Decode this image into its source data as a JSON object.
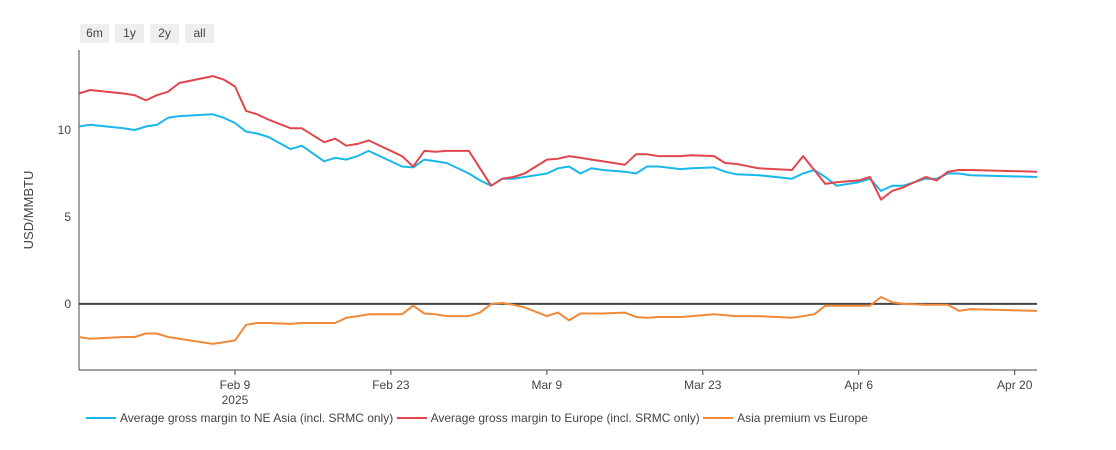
{
  "range_buttons": [
    "6m",
    "1y",
    "2y",
    "all"
  ],
  "colors": {
    "ne_asia": "#1ab7ea",
    "europe": "#e0474c",
    "premium": "#ee8a3a",
    "zero_line": "#444444",
    "axis": "#444444"
  },
  "chart_data": {
    "type": "line",
    "ylabel": "USD/MMBTU",
    "xlabel": "",
    "ylim": [
      -3.8,
      14.6
    ],
    "xlim": [
      "2025-01-26",
      "2025-04-22"
    ],
    "y_ticks": [
      0,
      5,
      10
    ],
    "y_tick_labels": [
      "0",
      "5",
      "10"
    ],
    "x_ticks": [
      "2025-02-09",
      "2025-02-23",
      "2025-03-09",
      "2025-03-23",
      "2025-04-06",
      "2025-04-20"
    ],
    "x_tick_labels": [
      "Feb 9",
      "Feb 23",
      "Mar 9",
      "Mar 23",
      "Apr 6",
      "Apr 20"
    ],
    "x_year_label": "2025",
    "zero_line": true,
    "legend_position": "bottom",
    "x": [
      "2025-01-26",
      "2025-01-27",
      "2025-01-30",
      "2025-01-31",
      "2025-02-01",
      "2025-02-02",
      "2025-02-03",
      "2025-02-04",
      "2025-02-07",
      "2025-02-08",
      "2025-02-09",
      "2025-02-10",
      "2025-02-11",
      "2025-02-12",
      "2025-02-14",
      "2025-02-15",
      "2025-02-17",
      "2025-02-18",
      "2025-02-19",
      "2025-02-20",
      "2025-02-21",
      "2025-02-24",
      "2025-02-25",
      "2025-02-26",
      "2025-02-27",
      "2025-02-28",
      "2025-03-02",
      "2025-03-03",
      "2025-03-04",
      "2025-03-05",
      "2025-03-06",
      "2025-03-07",
      "2025-03-09",
      "2025-03-10",
      "2025-03-11",
      "2025-03-12",
      "2025-03-13",
      "2025-03-14",
      "2025-03-16",
      "2025-03-17",
      "2025-03-18",
      "2025-03-19",
      "2025-03-21",
      "2025-03-22",
      "2025-03-24",
      "2025-03-25",
      "2025-03-26",
      "2025-03-28",
      "2025-03-31",
      "2025-04-01",
      "2025-04-02",
      "2025-04-03",
      "2025-04-04",
      "2025-04-06",
      "2025-04-07",
      "2025-04-08",
      "2025-04-09",
      "2025-04-10",
      "2025-04-12",
      "2025-04-13",
      "2025-04-14",
      "2025-04-15",
      "2025-04-16",
      "2025-04-22"
    ],
    "series": [
      {
        "name": "Average gross margin to NE Asia (incl. SRMC only)",
        "color_key": "ne_asia",
        "values": [
          10.2,
          10.3,
          10.1,
          10.0,
          10.2,
          10.3,
          10.7,
          10.8,
          10.9,
          10.7,
          10.4,
          9.9,
          9.8,
          9.6,
          8.9,
          9.1,
          8.2,
          8.4,
          8.3,
          8.5,
          8.8,
          7.9,
          7.85,
          8.3,
          8.2,
          8.1,
          7.5,
          7.1,
          6.8,
          7.2,
          7.2,
          7.3,
          7.5,
          7.8,
          7.9,
          7.5,
          7.8,
          7.7,
          7.6,
          7.5,
          7.9,
          7.9,
          7.75,
          7.8,
          7.85,
          7.6,
          7.45,
          7.4,
          7.2,
          7.5,
          7.7,
          7.3,
          6.8,
          7.0,
          7.2,
          6.5,
          6.8,
          6.8,
          7.2,
          7.2,
          7.5,
          7.5,
          7.4,
          7.3
        ]
      },
      {
        "name": "Average gross margin to Europe (incl. SRMC only)",
        "color_key": "europe",
        "values": [
          12.1,
          12.3,
          12.1,
          12.0,
          11.7,
          12.0,
          12.2,
          12.7,
          13.1,
          12.9,
          12.5,
          11.1,
          10.9,
          10.6,
          10.1,
          10.1,
          9.3,
          9.5,
          9.1,
          9.2,
          9.4,
          8.5,
          7.9,
          8.8,
          8.75,
          8.8,
          8.8,
          7.8,
          6.8,
          7.2,
          7.3,
          7.5,
          8.3,
          8.35,
          8.5,
          8.4,
          8.3,
          8.2,
          8.0,
          8.6,
          8.6,
          8.5,
          8.5,
          8.55,
          8.5,
          8.1,
          8.05,
          7.8,
          7.7,
          8.5,
          7.7,
          6.9,
          7.0,
          7.1,
          7.3,
          6.0,
          6.5,
          6.7,
          7.3,
          7.1,
          7.6,
          7.7,
          7.7,
          7.6
        ]
      },
      {
        "name": "Asia premium vs Europe",
        "color_key": "premium",
        "values": [
          -1.9,
          -2.0,
          -1.9,
          -1.9,
          -1.7,
          -1.7,
          -1.9,
          -2.0,
          -2.3,
          -2.2,
          -2.1,
          -1.2,
          -1.1,
          -1.1,
          -1.15,
          -1.1,
          -1.1,
          -1.1,
          -0.8,
          -0.7,
          -0.6,
          -0.6,
          -0.1,
          -0.55,
          -0.6,
          -0.7,
          -0.7,
          -0.5,
          0.0,
          0.05,
          -0.05,
          -0.2,
          -0.7,
          -0.5,
          -0.95,
          -0.55,
          -0.55,
          -0.55,
          -0.5,
          -0.75,
          -0.8,
          -0.75,
          -0.75,
          -0.7,
          -0.6,
          -0.65,
          -0.7,
          -0.7,
          -0.8,
          -0.7,
          -0.6,
          -0.1,
          -0.1,
          -0.1,
          -0.1,
          0.4,
          0.1,
          0.0,
          -0.05,
          -0.05,
          -0.05,
          -0.4,
          -0.3,
          -0.4
        ]
      }
    ]
  }
}
